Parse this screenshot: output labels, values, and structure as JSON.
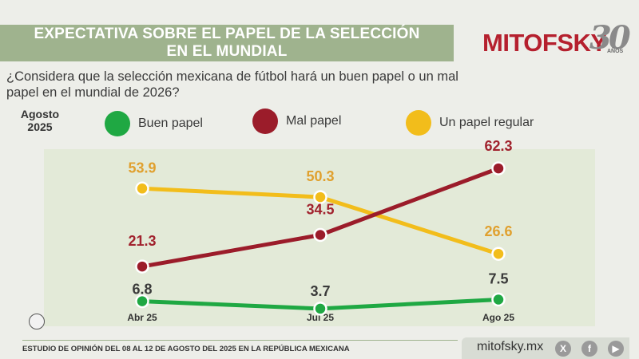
{
  "title": {
    "line1": "EXPECTATIVA SOBRE EL PAPEL DE LA SELECCIÓN",
    "line2": "EN EL MUNDIAL"
  },
  "logo": {
    "brand": "MITOFSKY",
    "number": "30",
    "anos": "AÑOS"
  },
  "question": "¿Considera que la selección mexicana de fútbol hará un buen papel o un mal papel en el mundial de 2026?",
  "period": {
    "line1": "Agosto",
    "line2": "2025"
  },
  "legend": [
    {
      "label": "Buen papel",
      "color": "#1fa843"
    },
    {
      "label": "Mal papel",
      "color": "#9b1c2a"
    },
    {
      "label": "Un papel regular",
      "color": "#f2bd1b"
    }
  ],
  "chart_data": {
    "type": "line",
    "categories": [
      "Abr 25",
      "Jul 25",
      "Ago 25"
    ],
    "series": [
      {
        "name": "Un papel regular",
        "color": "#f2bd1b",
        "label_color": "#e0a02e",
        "values": [
          53.9,
          50.3,
          26.6
        ]
      },
      {
        "name": "Mal papel",
        "color": "#9b1c2a",
        "label_color": "#a1222e",
        "values": [
          21.3,
          34.5,
          62.3
        ]
      },
      {
        "name": "Buen papel",
        "color": "#1fa843",
        "label_color": "#3a3a3a",
        "values": [
          6.8,
          3.7,
          7.5
        ]
      }
    ],
    "ylim": [
      0,
      70
    ],
    "title": "",
    "xlabel": "",
    "ylabel": "",
    "grid": false,
    "legend_position": "top"
  },
  "footer": "ESTUDIO DE OPINIÓN DEL 08 AL 12 DE AGOSTO DEL 2025 EN LA REPÚBLICA MEXICANA",
  "website": "mitofsky.mx",
  "social_icons": [
    "x-icon",
    "facebook-icon",
    "youtube-icon"
  ]
}
